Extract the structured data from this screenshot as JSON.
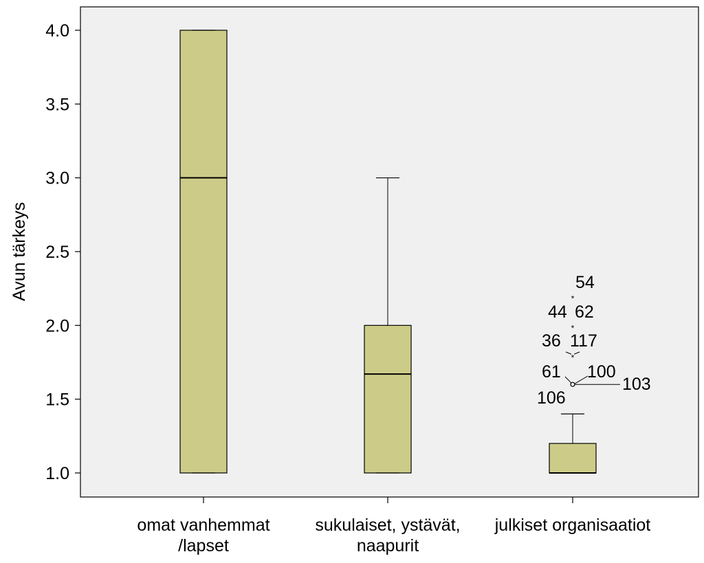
{
  "chart_data": {
    "type": "boxplot",
    "ylabel": "Avun tärkeys",
    "ylim": [
      0.83,
      4.16
    ],
    "yticks": [
      "1.0",
      "1.5",
      "2.0",
      "2.5",
      "3.0",
      "3.5",
      "4.0"
    ],
    "ytick_values": [
      1.0,
      1.5,
      2.0,
      2.5,
      3.0,
      3.5,
      4.0
    ],
    "grid": false,
    "colors": {
      "plot_bg": "#f0f0f0",
      "box_fill": "#cccc88",
      "stroke": "#000000"
    },
    "categories": [
      {
        "label_lines": [
          "omat vanhemmat",
          "/lapset"
        ],
        "whisker_low": 1.0,
        "q1": 1.0,
        "median": 3.0,
        "q3": 4.0,
        "whisker_high": 4.0
      },
      {
        "label_lines": [
          "sukulaiset, ystävät,",
          "naapurit"
        ],
        "whisker_low": 1.0,
        "q1": 1.0,
        "median": 1.67,
        "q3": 2.0,
        "whisker_high": 3.0
      },
      {
        "label_lines": [
          "julkiset organisaatiot"
        ],
        "whisker_low": 1.0,
        "q1": 1.0,
        "median": 1.0,
        "q3": 1.2,
        "whisker_high": 1.4
      }
    ],
    "outliers": [
      {
        "category": 2,
        "value": 2.2,
        "marker": "extreme",
        "labels": [
          "54"
        ]
      },
      {
        "category": 2,
        "value": 2.0,
        "marker": "extreme",
        "labels": [
          "44",
          "62"
        ]
      },
      {
        "category": 2,
        "value": 1.8,
        "marker": "extreme",
        "labels": [
          "36",
          "117"
        ]
      },
      {
        "category": 2,
        "value": 1.6,
        "marker": "circle",
        "labels": [
          "61",
          "100",
          "103",
          "106"
        ]
      }
    ]
  }
}
